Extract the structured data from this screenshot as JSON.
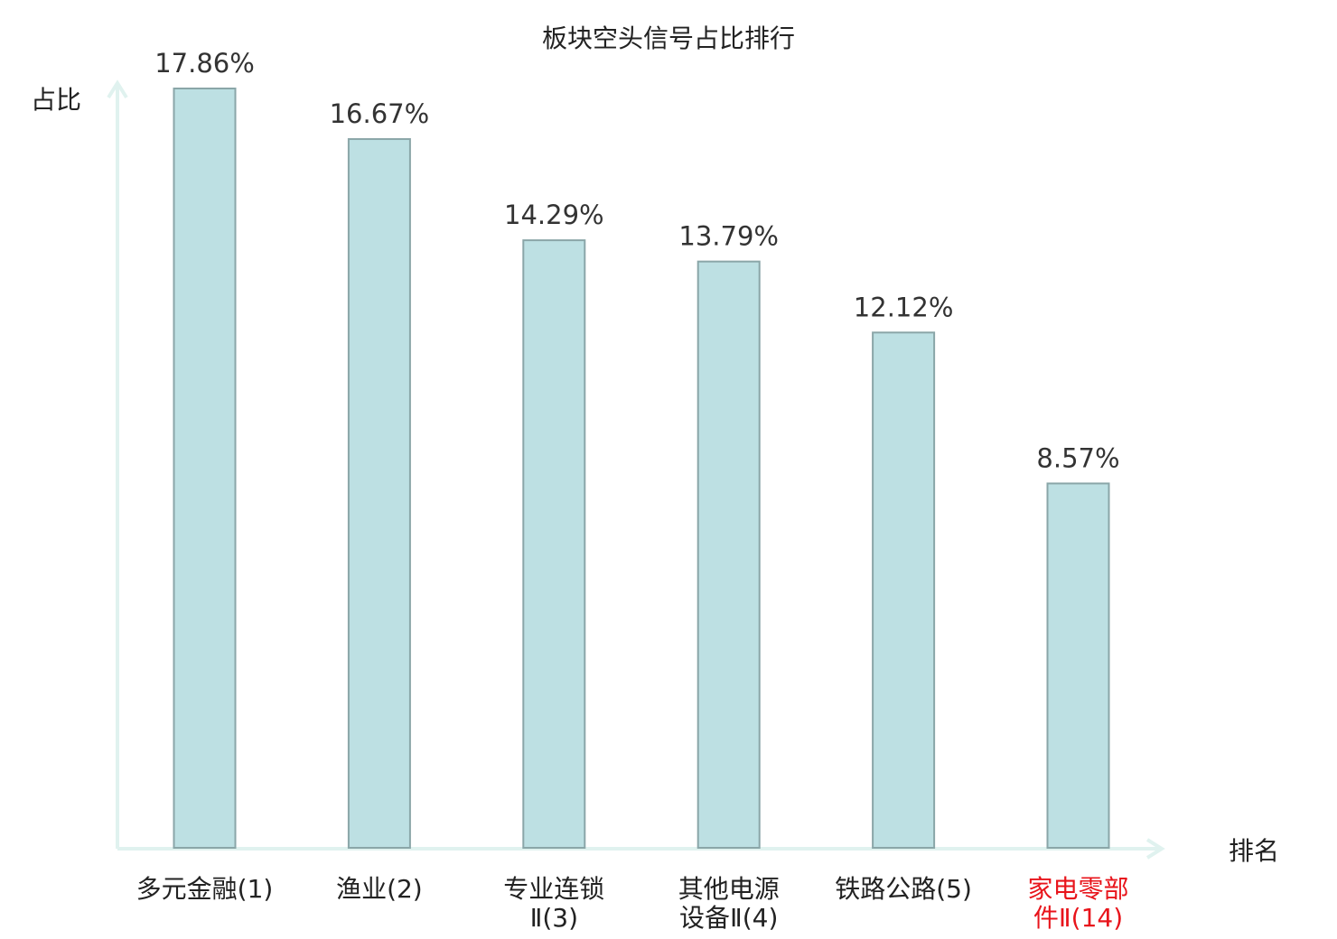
{
  "chart_data": {
    "type": "bar",
    "title": "板块空头信号占比排行",
    "ylabel": "占比",
    "xlabel": "排名",
    "ylim": [
      0,
      17.86
    ],
    "grid": false,
    "categories": [
      [
        "多元金融(1)"
      ],
      [
        "渔业(2)"
      ],
      [
        "专业连锁",
        "Ⅱ(3)"
      ],
      [
        "其他电源",
        "设备Ⅱ(4)"
      ],
      [
        "铁路公路(5)"
      ],
      [
        "家电零部",
        "件Ⅱ(14)"
      ]
    ],
    "values": [
      17.86,
      16.67,
      14.29,
      13.79,
      12.12,
      8.57
    ],
    "value_labels": [
      "17.86%",
      "16.67%",
      "14.29%",
      "13.79%",
      "12.12%",
      "8.57%"
    ],
    "highlighted_category_index": 5,
    "colors": {
      "bar_fill": "#bde0e3",
      "bar_stroke": "#8aa6a8",
      "axis": "#e0f2ef",
      "highlight_text": "#e8141b",
      "text": "#222222"
    }
  }
}
